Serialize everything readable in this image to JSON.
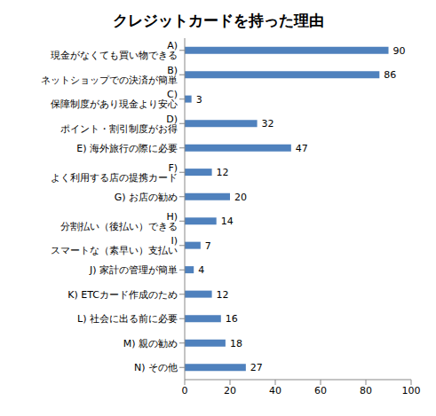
{
  "chart_data": {
    "type": "bar",
    "title": "クレジットカードを持った理由",
    "orientation": "horizontal",
    "categories": [
      "A) 現金がなくても買い物できる",
      "B) ネットショップでの決済が簡単",
      "C) 保障制度があり現金より安心",
      "D) ポイント・割引制度がお得",
      "E) 海外旅行の際に必要",
      "F) よく利用する店の提携カード",
      "G) お店の勧め",
      "H) 分割払い（後払い）できる",
      "I) スマートな（素早い）支払い",
      "J) 家計の管理が簡単",
      "K) ETCカード作成のため",
      "L) 社会に出る前に必要",
      "M) 親の勧め",
      "N) その他"
    ],
    "values": [
      90,
      86,
      3,
      32,
      47,
      12,
      20,
      14,
      7,
      4,
      12,
      16,
      18,
      27
    ],
    "color": "#4f81bd",
    "xlim": [
      0,
      100
    ],
    "xticks": [
      0,
      20,
      40,
      60,
      80,
      100
    ],
    "grid": false,
    "data_labels": true
  }
}
